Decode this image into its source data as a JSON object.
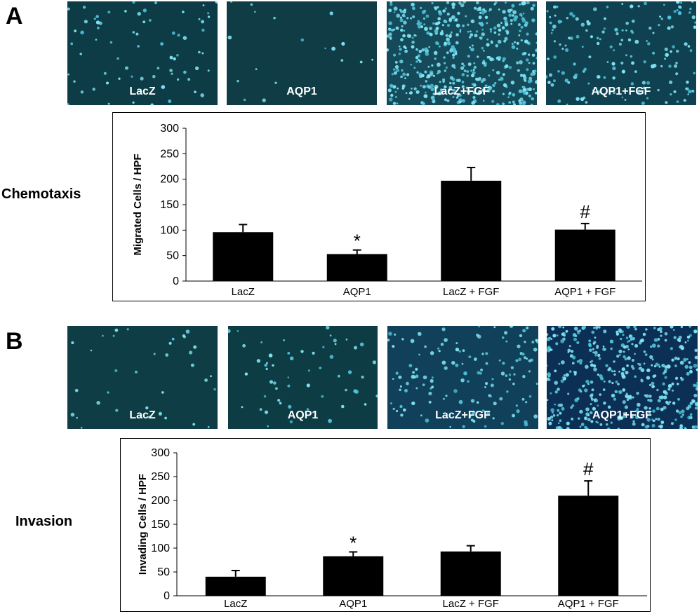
{
  "panels": [
    {
      "letter": "A",
      "section_label": "Chemotaxis",
      "images": [
        {
          "label": "LacZ",
          "density": 70,
          "bg": "#0d3b46"
        },
        {
          "label": "AQP1",
          "density": 18,
          "bg": "#0f3c45"
        },
        {
          "label": "LacZ+FGF",
          "density": 480,
          "bg": "#144a5a"
        },
        {
          "label": "AQP1+FGF",
          "density": 160,
          "bg": "#0f4150"
        }
      ]
    },
    {
      "letter": "B",
      "section_label": "Invasion",
      "images": [
        {
          "label": "LacZ",
          "density": 35,
          "bg": "#0f3d45"
        },
        {
          "label": "AQP1",
          "density": 55,
          "bg": "#0e3c45"
        },
        {
          "label": "LacZ+FGF",
          "density": 140,
          "bg": "#10405a"
        },
        {
          "label": "AQP1+FGF",
          "density": 420,
          "bg": "#0c2f55"
        }
      ]
    }
  ],
  "chart_data": [
    {
      "type": "bar",
      "categories": [
        "LacZ",
        "AQP1",
        "LacZ + FGF",
        "AQP1 + FGF"
      ],
      "values": [
        96,
        53,
        197,
        101
      ],
      "errors": [
        15,
        8,
        26,
        12
      ],
      "annotations": [
        "",
        "*",
        "",
        "#"
      ],
      "ylabel": "Migrated Cells / HPF",
      "ylim": [
        0,
        300
      ],
      "yticks": [
        0,
        50,
        100,
        150,
        200,
        250,
        300
      ],
      "bar_color": "#000000",
      "grid": false
    },
    {
      "type": "bar",
      "categories": [
        "LacZ",
        "AQP1",
        "LacZ + FGF",
        "AQP1 + FGF"
      ],
      "values": [
        40,
        83,
        93,
        210
      ],
      "errors": [
        13,
        9,
        12,
        31
      ],
      "annotations": [
        "",
        "*",
        "",
        "#"
      ],
      "ylabel": "Invading Cells / HPF",
      "ylim": [
        0,
        300
      ],
      "yticks": [
        0,
        50,
        100,
        150,
        200,
        250,
        300
      ],
      "bar_color": "#000000",
      "grid": false
    }
  ]
}
